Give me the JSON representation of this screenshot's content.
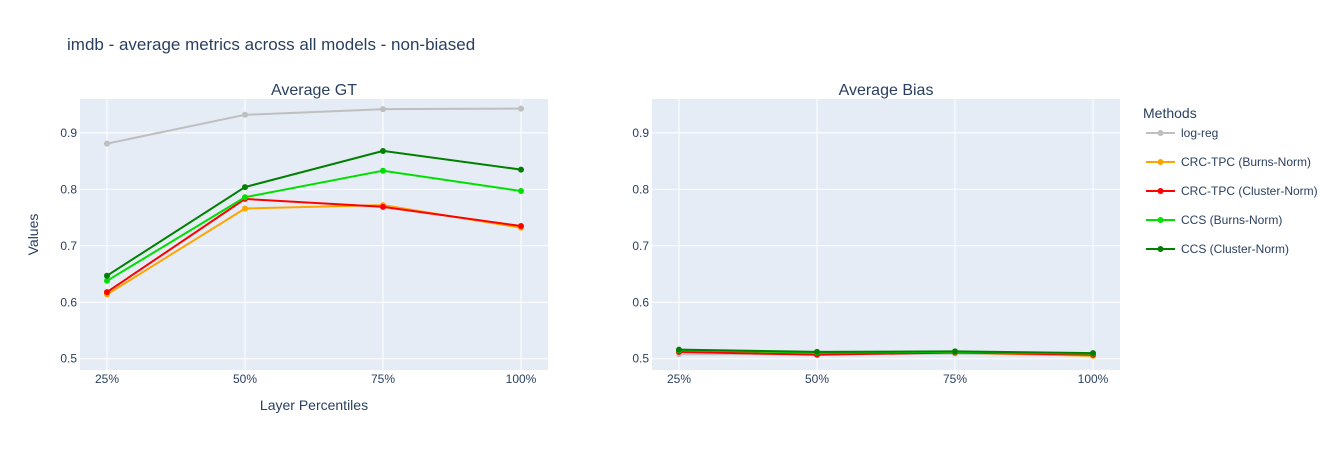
{
  "title": "imdb - average metrics across all models - non-biased",
  "legend": {
    "title": "Methods",
    "placement": "right"
  },
  "chart_data": [
    {
      "type": "line",
      "title": "Average GT",
      "xlabel": "Layer Percentiles",
      "ylabel": "Values",
      "categories": [
        "25%",
        "50%",
        "75%",
        "100%"
      ],
      "ylim": [
        0.48,
        0.96
      ],
      "yticks": [
        0.5,
        0.6,
        0.7,
        0.8,
        0.9
      ],
      "grid": true,
      "series": [
        {
          "name": "log-reg",
          "color": "#bfbfbf",
          "values": [
            0.881,
            0.932,
            0.942,
            0.943
          ]
        },
        {
          "name": "CRC-TPC (Burns-Norm)",
          "color": "#ffa500",
          "values": [
            0.614,
            0.766,
            0.772,
            0.732
          ]
        },
        {
          "name": "CRC-TPC (Cluster-Norm)",
          "color": "#ff0000",
          "values": [
            0.618,
            0.783,
            0.769,
            0.735
          ]
        },
        {
          "name": "CCS (Burns-Norm)",
          "color": "#00e000",
          "values": [
            0.638,
            0.786,
            0.833,
            0.797
          ]
        },
        {
          "name": "CCS (Cluster-Norm)",
          "color": "#008000",
          "values": [
            0.647,
            0.804,
            0.868,
            0.835
          ]
        }
      ]
    },
    {
      "type": "line",
      "title": "Average Bias",
      "xlabel": "",
      "ylabel": "",
      "categories": [
        "25%",
        "50%",
        "75%",
        "100%"
      ],
      "ylim": [
        0.48,
        0.96
      ],
      "yticks": [
        0.5,
        0.6,
        0.7,
        0.8,
        0.9
      ],
      "grid": true,
      "series": [
        {
          "name": "log-reg",
          "color": "#bfbfbf",
          "values": [
            0.508,
            0.508,
            0.509,
            0.507
          ]
        },
        {
          "name": "CRC-TPC (Burns-Norm)",
          "color": "#ffa500",
          "values": [
            0.513,
            0.508,
            0.511,
            0.505
          ]
        },
        {
          "name": "CRC-TPC (Cluster-Norm)",
          "color": "#ff0000",
          "values": [
            0.512,
            0.507,
            0.511,
            0.507
          ]
        },
        {
          "name": "CCS (Burns-Norm)",
          "color": "#00e000",
          "values": [
            0.515,
            0.511,
            0.512,
            0.509
          ]
        },
        {
          "name": "CCS (Cluster-Norm)",
          "color": "#008000",
          "values": [
            0.516,
            0.512,
            0.513,
            0.51
          ]
        }
      ]
    }
  ]
}
